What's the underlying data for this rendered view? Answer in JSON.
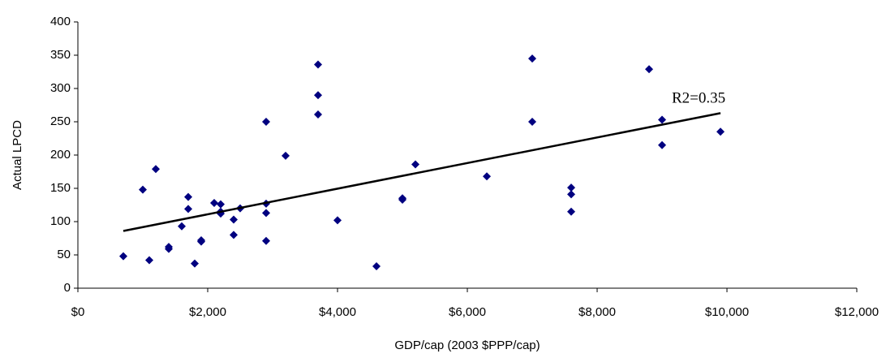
{
  "chart_data": {
    "type": "scatter",
    "x_label": "GDP/cap (2003 $PPP/cap)",
    "y_label": "Actual LPCD",
    "annotation": "R2=0.35",
    "color": "#000080",
    "x": [
      700,
      1000,
      1100,
      1200,
      1400,
      1400,
      1600,
      1700,
      1700,
      1800,
      1900,
      1900,
      2100,
      2200,
      2200,
      2200,
      2400,
      2400,
      2500,
      2900,
      2900,
      2900,
      2900,
      3200,
      3700,
      3700,
      3700,
      4000,
      4600,
      5000,
      5000,
      5200,
      6300,
      7000,
      7000,
      7600,
      7600,
      7600,
      8800,
      9000,
      9000,
      9900
    ],
    "values": [
      48,
      148,
      42,
      179,
      62,
      59,
      93,
      137,
      119,
      37,
      72,
      70,
      128,
      126,
      115,
      112,
      103,
      80,
      120,
      250,
      127,
      113,
      71,
      199,
      336,
      290,
      261,
      102,
      33,
      135,
      133,
      186,
      168,
      345,
      250,
      151,
      141,
      115,
      329,
      253,
      215,
      235
    ],
    "trendline": {
      "x": [
        700,
        9900
      ],
      "y": [
        86,
        263
      ],
      "color": "#000000"
    },
    "xlim": [
      0,
      12000
    ],
    "xticks": [
      {
        "value": 0,
        "label": "$0"
      },
      {
        "value": 2000,
        "label": "$2,000"
      },
      {
        "value": 4000,
        "label": "$4,000"
      },
      {
        "value": 6000,
        "label": "$6,000"
      },
      {
        "value": 8000,
        "label": "$8,000"
      },
      {
        "value": 10000,
        "label": "$10,000"
      },
      {
        "value": 12000,
        "label": "$12,000"
      }
    ],
    "ylim": [
      0,
      400
    ],
    "yticks": [
      0,
      50,
      100,
      150,
      200,
      250,
      300,
      350,
      400
    ],
    "grid": false
  }
}
